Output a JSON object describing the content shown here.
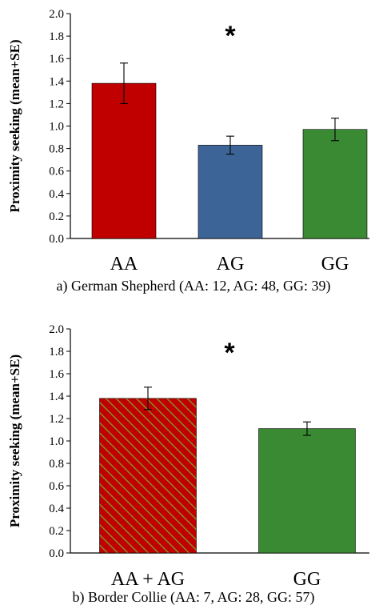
{
  "chart_data": [
    {
      "type": "bar",
      "title": "a) German Shepherd (AA: 12, AG: 48, GG: 39)",
      "ylabel": "Proximity seeking (mean+SE)",
      "xlabel": "",
      "ylim": [
        0,
        2.0
      ],
      "yticks": [
        "0.0",
        "0.2",
        "0.4",
        "0.6",
        "0.8",
        "1.0",
        "1.2",
        "1.4",
        "1.6",
        "1.8",
        "2.0"
      ],
      "categories": [
        "AA",
        "AG",
        "GG"
      ],
      "values": [
        1.38,
        0.83,
        0.97
      ],
      "error": [
        0.18,
        0.08,
        0.1
      ],
      "colors": [
        "#c00000",
        "#3c6496",
        "#3a8a34"
      ],
      "hatched": [
        false,
        false,
        false
      ],
      "annotation": "*",
      "grid": false,
      "legend": "none"
    },
    {
      "type": "bar",
      "title": "b) Border Collie (AA: 7, AG: 28, GG: 57)",
      "ylabel": "Proximity seeking (mean+SE)",
      "xlabel": "",
      "ylim": [
        0,
        2.0
      ],
      "yticks": [
        "0.0",
        "0.2",
        "0.4",
        "0.6",
        "0.8",
        "1.0",
        "1.2",
        "1.4",
        "1.6",
        "1.8",
        "2.0"
      ],
      "categories": [
        "AA + AG",
        "GG"
      ],
      "values": [
        1.38,
        1.11
      ],
      "error": [
        0.1,
        0.06
      ],
      "colors": [
        "#c00000",
        "#3a8a34"
      ],
      "hatched": [
        true,
        false
      ],
      "hatch_color": "#8a8a2a",
      "annotation": "*",
      "grid": false,
      "legend": "none"
    }
  ]
}
